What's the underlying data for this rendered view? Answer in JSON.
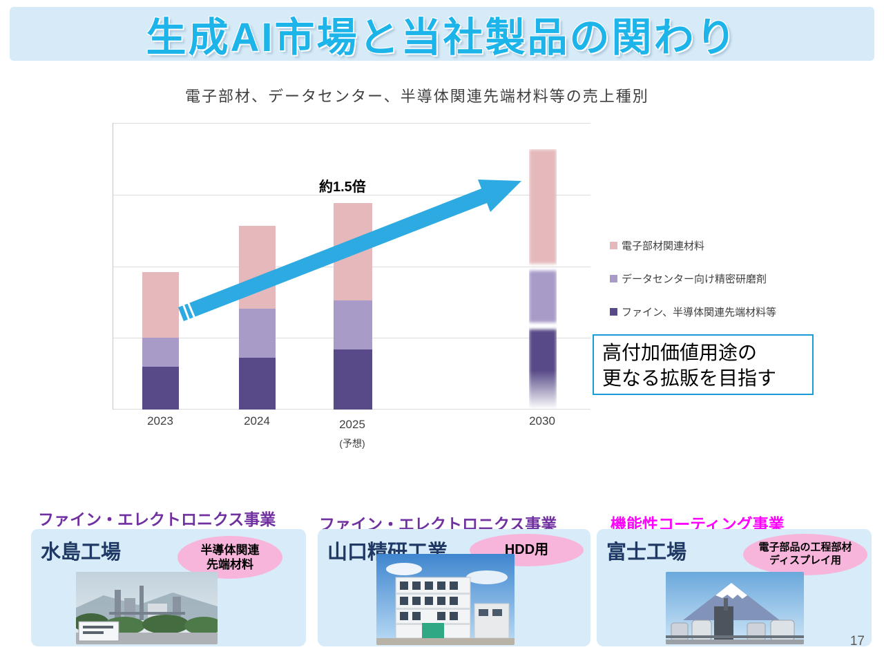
{
  "title": "生成AI市場と当社製品の関わり",
  "page_number": "17",
  "chart": {
    "arrow_label": "約1.5倍",
    "forecast_note": "(予想)",
    "callout_line1": "高付加価値用途の",
    "callout_line2": "更なる拡販を目指す"
  },
  "chart_data": {
    "type": "bar",
    "stacked": true,
    "title": "電子部材、データセンター、半導体関連先端材料等の売上種別",
    "categories": [
      "2023",
      "2024",
      "2025",
      "2030"
    ],
    "ylim": [
      0,
      100
    ],
    "gridlines": true,
    "legend_position": "right",
    "series": [
      {
        "name": "ファイン、半導体関連先端材料等",
        "color": "#584a88",
        "values": [
          15,
          18,
          21,
          28
        ]
      },
      {
        "name": "データセンター向け精密研磨剤",
        "color": "#a89bc8",
        "values": [
          10,
          17,
          17,
          18
        ]
      },
      {
        "name": "電子部材関連材料",
        "color": "#e5b9bb",
        "values": [
          23,
          29,
          34,
          40
        ]
      }
    ],
    "annotations": [
      "約1.5倍"
    ],
    "notes": "2030 bar is rendered blurred with gaps between segments (projection); no y-axis tick labels are shown"
  },
  "legend": [
    {
      "label": "電子部材関連材料",
      "color": "#e5b9bb"
    },
    {
      "label": "データセンター向け精密研磨剤",
      "color": "#a89bc8"
    },
    {
      "label": "ファイン、半導体関連先端材料等",
      "color": "#584a88"
    }
  ],
  "accent": {
    "arrow_color": "#2caae1",
    "callout_border": "#1b9cd8",
    "title_color": "#1db4ea"
  },
  "cards": [
    {
      "business": "ファイン・エレクトロニクス事業",
      "business_color": "#7030a0",
      "site": "水島工場",
      "badge_line1": "半導体関連",
      "badge_line2": "先端材料"
    },
    {
      "business": "ファイン・エレクトロニクス事業",
      "business_color": "#7030a0",
      "site": "山口精研工業",
      "badge_line1": "HDD用",
      "badge_line2": ""
    },
    {
      "business": "機能性コーティング事業",
      "business_color": "#ff00ff",
      "site": "富士工場",
      "badge_line1": "電子部品の工程部材",
      "badge_line2": "ディスプレイ用"
    }
  ]
}
